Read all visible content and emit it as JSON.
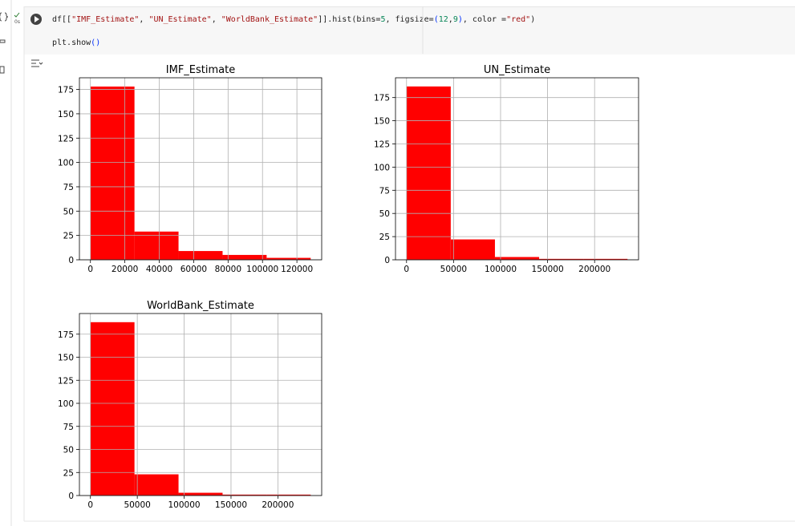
{
  "code": {
    "lines": [
      [
        {
          "text": "df[[",
          "color": "#212121"
        },
        {
          "text": "\"IMF_Estimate\"",
          "color": "#a31515"
        },
        {
          "text": ", ",
          "color": "#212121"
        },
        {
          "text": "\"UN_Estimate\"",
          "color": "#a31515"
        },
        {
          "text": ", ",
          "color": "#212121"
        },
        {
          "text": "\"WorldBank_Estimate\"",
          "color": "#a31515"
        },
        {
          "text": "]].hist(bins=",
          "color": "#212121"
        },
        {
          "text": "5",
          "color": "#098658"
        },
        {
          "text": ", figsize=",
          "color": "#212121"
        },
        {
          "text": "(",
          "color": "#0431fa"
        },
        {
          "text": "12",
          "color": "#098658"
        },
        {
          "text": ",",
          "color": "#212121"
        },
        {
          "text": "9",
          "color": "#098658"
        },
        {
          "text": ")",
          "color": "#0431fa"
        },
        {
          "text": ", color =",
          "color": "#212121"
        },
        {
          "text": "\"red\"",
          "color": "#a31515"
        },
        {
          "text": ")",
          "color": "#212121"
        }
      ],
      [
        {
          "text": "plt.show",
          "color": "#212121"
        },
        {
          "text": "()",
          "color": "#0431fa"
        }
      ]
    ],
    "status": "0s"
  },
  "chart_data": [
    {
      "type": "histogram",
      "title": "IMF_Estimate",
      "color": "red",
      "grid": true,
      "bins": [
        0,
        25600,
        51200,
        76800,
        102400,
        128000
      ],
      "values": [
        178,
        29,
        9,
        5,
        2
      ],
      "xlim": [
        -6400,
        134400
      ],
      "ylim": [
        0,
        187
      ],
      "xticks": [
        0,
        20000,
        40000,
        60000,
        80000,
        100000,
        120000
      ],
      "yticks": [
        0,
        25,
        50,
        75,
        100,
        125,
        150,
        175
      ]
    },
    {
      "type": "histogram",
      "title": "UN_Estimate",
      "color": "red",
      "grid": true,
      "bins": [
        0,
        47000,
        94000,
        141000,
        188000,
        235000
      ],
      "values": [
        187,
        22,
        3,
        1,
        1
      ],
      "xlim": [
        -11750,
        246750
      ],
      "ylim": [
        0,
        196.35
      ],
      "xticks": [
        0,
        50000,
        100000,
        150000,
        200000
      ],
      "yticks": [
        0,
        25,
        50,
        75,
        100,
        125,
        150,
        175
      ]
    },
    {
      "type": "histogram",
      "title": "WorldBank_Estimate",
      "color": "red",
      "grid": true,
      "bins": [
        0,
        47000,
        94000,
        141000,
        188000,
        235000
      ],
      "values": [
        188,
        23,
        3,
        1,
        1
      ],
      "xlim": [
        -11750,
        246750
      ],
      "ylim": [
        0,
        197.4
      ],
      "xticks": [
        0,
        50000,
        100000,
        150000,
        200000
      ],
      "yticks": [
        0,
        25,
        50,
        75,
        100,
        125,
        150,
        175
      ]
    }
  ]
}
